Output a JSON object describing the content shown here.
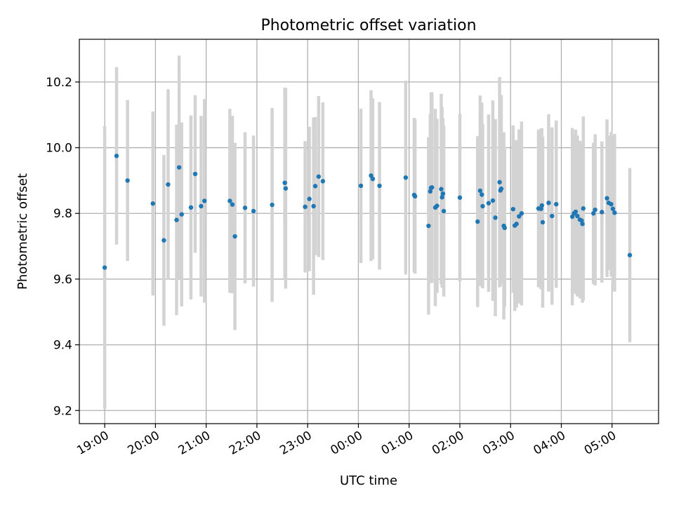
{
  "chart_data": {
    "type": "scatter",
    "title": "Photometric offset variation",
    "xlabel": "UTC time",
    "ylabel": "Photometric offset",
    "xlim": [
      "18:30",
      "05:55"
    ],
    "ylim": [
      9.16,
      10.33
    ],
    "grid": true,
    "colors": {
      "point": "#1f77b4",
      "errorbar": "#d3d3d3"
    },
    "x_ticks": [
      "19:00",
      "20:00",
      "21:00",
      "22:00",
      "23:00",
      "00:00",
      "01:00",
      "02:00",
      "03:00",
      "04:00",
      "05:00"
    ],
    "y_ticks": [
      "9.2",
      "9.4",
      "9.6",
      "9.8",
      "10.0",
      "10.2"
    ],
    "series": [
      {
        "x": [
          "19:00",
          "19:14",
          "19:27",
          "19:57",
          "20:10",
          "20:15",
          "20:25",
          "20:28",
          "20:31",
          "20:42",
          "20:47",
          "20:54",
          "20:58",
          "21:28",
          "21:31",
          "21:34",
          "21:46",
          "21:56",
          "22:18",
          "22:33",
          "22:34",
          "22:57",
          "23:02",
          "23:07",
          "23:09",
          "23:13",
          "23:18",
          "00:03",
          "00:15",
          "00:17",
          "00:25",
          "00:56",
          "01:06",
          "01:07",
          "01:23",
          "01:25",
          "01:26",
          "01:27",
          "01:31",
          "01:33",
          "01:38",
          "01:39",
          "01:40",
          "01:41",
          "02:00",
          "02:21",
          "02:24",
          "02:26",
          "02:27",
          "02:34",
          "02:39",
          "02:42",
          "02:47",
          "02:48",
          "02:49",
          "02:52",
          "02:53",
          "03:03",
          "03:05",
          "03:07",
          "03:10",
          "03:13",
          "03:33",
          "03:36",
          "03:37",
          "03:38",
          "03:45",
          "03:49",
          "03:54",
          "04:13",
          "04:15",
          "04:17",
          "04:19",
          "04:22",
          "04:24",
          "04:25",
          "04:26",
          "04:38",
          "04:40",
          "04:48",
          "04:54",
          "04:56",
          "04:59",
          "05:01",
          "05:03",
          "05:21"
        ],
        "y": [
          9.635,
          9.975,
          9.9,
          9.83,
          9.718,
          9.888,
          9.78,
          9.94,
          9.797,
          9.818,
          9.92,
          9.822,
          9.838,
          9.838,
          9.827,
          9.73,
          9.817,
          9.807,
          9.826,
          9.893,
          9.876,
          9.82,
          9.844,
          9.822,
          9.883,
          9.912,
          9.898,
          9.884,
          9.915,
          9.905,
          9.884,
          9.909,
          9.856,
          9.852,
          9.762,
          9.867,
          9.878,
          9.879,
          9.818,
          9.823,
          9.874,
          9.849,
          9.86,
          9.807,
          9.848,
          9.775,
          9.869,
          9.857,
          9.822,
          9.831,
          9.839,
          9.787,
          9.895,
          9.87,
          9.875,
          9.762,
          9.756,
          9.813,
          9.763,
          9.768,
          9.791,
          9.8,
          9.815,
          9.814,
          9.824,
          9.773,
          9.832,
          9.792,
          9.828,
          9.79,
          9.8,
          9.805,
          9.792,
          9.781,
          9.778,
          9.768,
          9.815,
          9.8,
          9.811,
          9.804,
          9.846,
          9.832,
          9.828,
          9.814,
          9.802,
          9.673
        ],
        "yerr": [
          0.43,
          0.27,
          0.245,
          0.28,
          0.26,
          0.29,
          0.29,
          0.34,
          0.28,
          0.28,
          0.24,
          0.275,
          0.31,
          0.28,
          0.27,
          0.285,
          0.23,
          0.23,
          0.295,
          0.29,
          0.305,
          0.2,
          0.22,
          0.27,
          0.21,
          0.245,
          0.24,
          0.235,
          0.26,
          0.245,
          0.255,
          0.295,
          0.235,
          0.235,
          0.27,
          0.235,
          0.29,
          0.29,
          0.3,
          0.265,
          0.29,
          0.275,
          0.23,
          0.26,
          0.255,
          0.26,
          0.29,
          0.28,
          0.25,
          0.27,
          0.305,
          0.3,
          0.32,
          0.29,
          0.285,
          0.285,
          0.24,
          0.255,
          0.26,
          0.255,
          0.265,
          0.28,
          0.24,
          0.245,
          0.235,
          0.26,
          0.27,
          0.27,
          0.255,
          0.27,
          0.24,
          0.25,
          0.245,
          0.24,
          0.235,
          0.24,
          0.28,
          0.215,
          0.23,
          0.215,
          0.24,
          0.205,
          0.22,
          0.22,
          0.24,
          0.265
        ]
      }
    ]
  }
}
